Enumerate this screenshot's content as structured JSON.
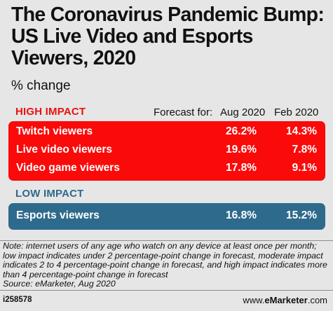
{
  "chart_data": {
    "type": "table",
    "title": "The Coronavirus Pandemic Bump: US Live Video and Esports Viewers, 2020",
    "subtitle": "% change",
    "columns_label": "Forecast for:",
    "columns": [
      "Aug 2020",
      "Feb 2020"
    ],
    "groups": [
      {
        "name": "HIGH IMPACT",
        "color": "#fb0a0a",
        "rows": [
          {
            "label": "Twitch viewers",
            "values": [
              "26.2%",
              "14.3%"
            ]
          },
          {
            "label": "Live video viewers",
            "values": [
              "19.6%",
              "7.8%"
            ]
          },
          {
            "label": "Video game viewers",
            "values": [
              "17.8%",
              "9.1%"
            ]
          }
        ]
      },
      {
        "name": "LOW IMPACT",
        "color": "#2e6a8c",
        "rows": [
          {
            "label": "Esports viewers",
            "values": [
              "16.8%",
              "15.2%"
            ]
          }
        ]
      }
    ],
    "note": "Note: internet users of any age who watch on any device at least once per month; low impact indicates under 2 percentage-point change in forecast, moderate impact indicates 2 to 4 percentage-point change in forecast, and high impact indicates more than 4 percentage-point change in forecast",
    "source": "Source: eMarketer, Aug 2020"
  },
  "footer": {
    "chart_id": "i258578",
    "brand_prefix": "www.",
    "brand_name": "eMarketer",
    "brand_suffix": ".com"
  },
  "colors": {
    "high_label": "#e8120f",
    "low_label": "#2e6a8c"
  }
}
